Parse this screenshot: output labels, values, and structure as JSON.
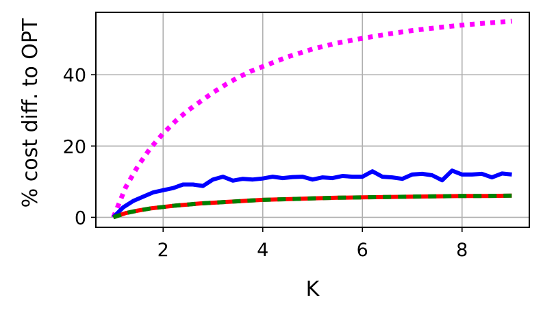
{
  "chart_data": {
    "type": "line",
    "title": "",
    "xlabel": "K",
    "ylabel": "% cost diff. to OPT",
    "xlim": [
      0.65,
      9.35
    ],
    "ylim": [
      -2.8,
      57.5
    ],
    "xticks": [
      2,
      4,
      6,
      8
    ],
    "yticks": [
      0,
      20,
      40
    ],
    "grid": true,
    "legend": "none",
    "series": [
      {
        "color": "#ff00ff",
        "style": "dotted",
        "x": [
          1.0,
          1.25,
          1.5,
          1.75,
          2.0,
          2.25,
          2.5,
          2.75,
          3.0,
          3.25,
          3.5,
          3.75,
          4.0,
          4.5,
          5.0,
          5.5,
          6.0,
          6.5,
          7.0,
          7.5,
          8.0,
          8.5,
          9.0
        ],
        "values": [
          0.0,
          8.5,
          14.5,
          19.5,
          23.5,
          27.0,
          30.0,
          32.5,
          35.0,
          37.2,
          39.2,
          40.9,
          42.3,
          45.0,
          47.2,
          48.9,
          50.2,
          51.4,
          52.4,
          53.2,
          53.9,
          54.5,
          55.0
        ]
      },
      {
        "color": "#0000ff",
        "style": "solid",
        "x": [
          1.0,
          1.2,
          1.4,
          1.6,
          1.8,
          2.0,
          2.2,
          2.4,
          2.6,
          2.8,
          3.0,
          3.2,
          3.4,
          3.6,
          3.8,
          4.0,
          4.2,
          4.4,
          4.6,
          4.8,
          5.0,
          5.2,
          5.4,
          5.6,
          5.8,
          6.0,
          6.2,
          6.4,
          6.6,
          6.8,
          7.0,
          7.2,
          7.4,
          7.6,
          7.8,
          8.0,
          8.2,
          8.4,
          8.6,
          8.8,
          9.0
        ],
        "values": [
          0.0,
          2.8,
          4.6,
          5.8,
          7.0,
          7.6,
          8.2,
          9.2,
          9.2,
          8.8,
          10.6,
          11.4,
          10.3,
          10.8,
          10.6,
          10.9,
          11.4,
          11.0,
          11.3,
          11.4,
          10.6,
          11.2,
          11.0,
          11.6,
          11.4,
          11.4,
          12.9,
          11.4,
          11.2,
          10.8,
          12.0,
          12.2,
          11.8,
          10.4,
          13.1,
          12.0,
          12.0,
          12.2,
          11.2,
          12.3,
          12.0
        ]
      },
      {
        "color": "#ff0000",
        "style": "solid",
        "x": [
          1.0,
          1.25,
          1.5,
          1.75,
          2.0,
          2.25,
          2.5,
          2.75,
          3.0,
          3.25,
          3.5,
          3.75,
          4.0,
          4.5,
          5.0,
          5.5,
          6.0,
          6.5,
          7.0,
          7.5,
          8.0,
          8.5,
          9.0
        ],
        "values": [
          0.0,
          1.2,
          1.9,
          2.5,
          2.9,
          3.3,
          3.6,
          3.9,
          4.1,
          4.3,
          4.5,
          4.7,
          4.9,
          5.1,
          5.3,
          5.5,
          5.6,
          5.7,
          5.8,
          5.9,
          6.0,
          6.0,
          6.1
        ]
      },
      {
        "color": "#008000",
        "style": "dashed",
        "x": [
          1.0,
          1.25,
          1.5,
          1.75,
          2.0,
          2.25,
          2.5,
          2.75,
          3.0,
          3.25,
          3.5,
          3.75,
          4.0,
          4.5,
          5.0,
          5.5,
          6.0,
          6.5,
          7.0,
          7.5,
          8.0,
          8.5,
          9.0
        ],
        "values": [
          0.0,
          1.2,
          1.9,
          2.5,
          2.9,
          3.3,
          3.6,
          3.9,
          4.1,
          4.3,
          4.5,
          4.7,
          4.9,
          5.1,
          5.3,
          5.5,
          5.6,
          5.7,
          5.8,
          5.9,
          6.0,
          6.0,
          6.1
        ]
      }
    ]
  }
}
